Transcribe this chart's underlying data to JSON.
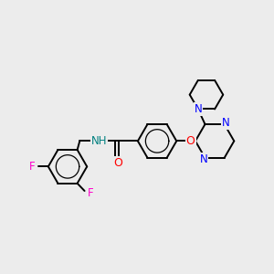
{
  "bg_color": "#ececec",
  "bond_color": "#000000",
  "bond_width": 1.4,
  "atom_colors": {
    "F": "#ff00cc",
    "N": "#0000ff",
    "O": "#ff0000",
    "H": "#008080",
    "C": "#000000"
  },
  "font_size": 8.5,
  "figsize": [
    3.0,
    3.0
  ],
  "dpi": 100
}
